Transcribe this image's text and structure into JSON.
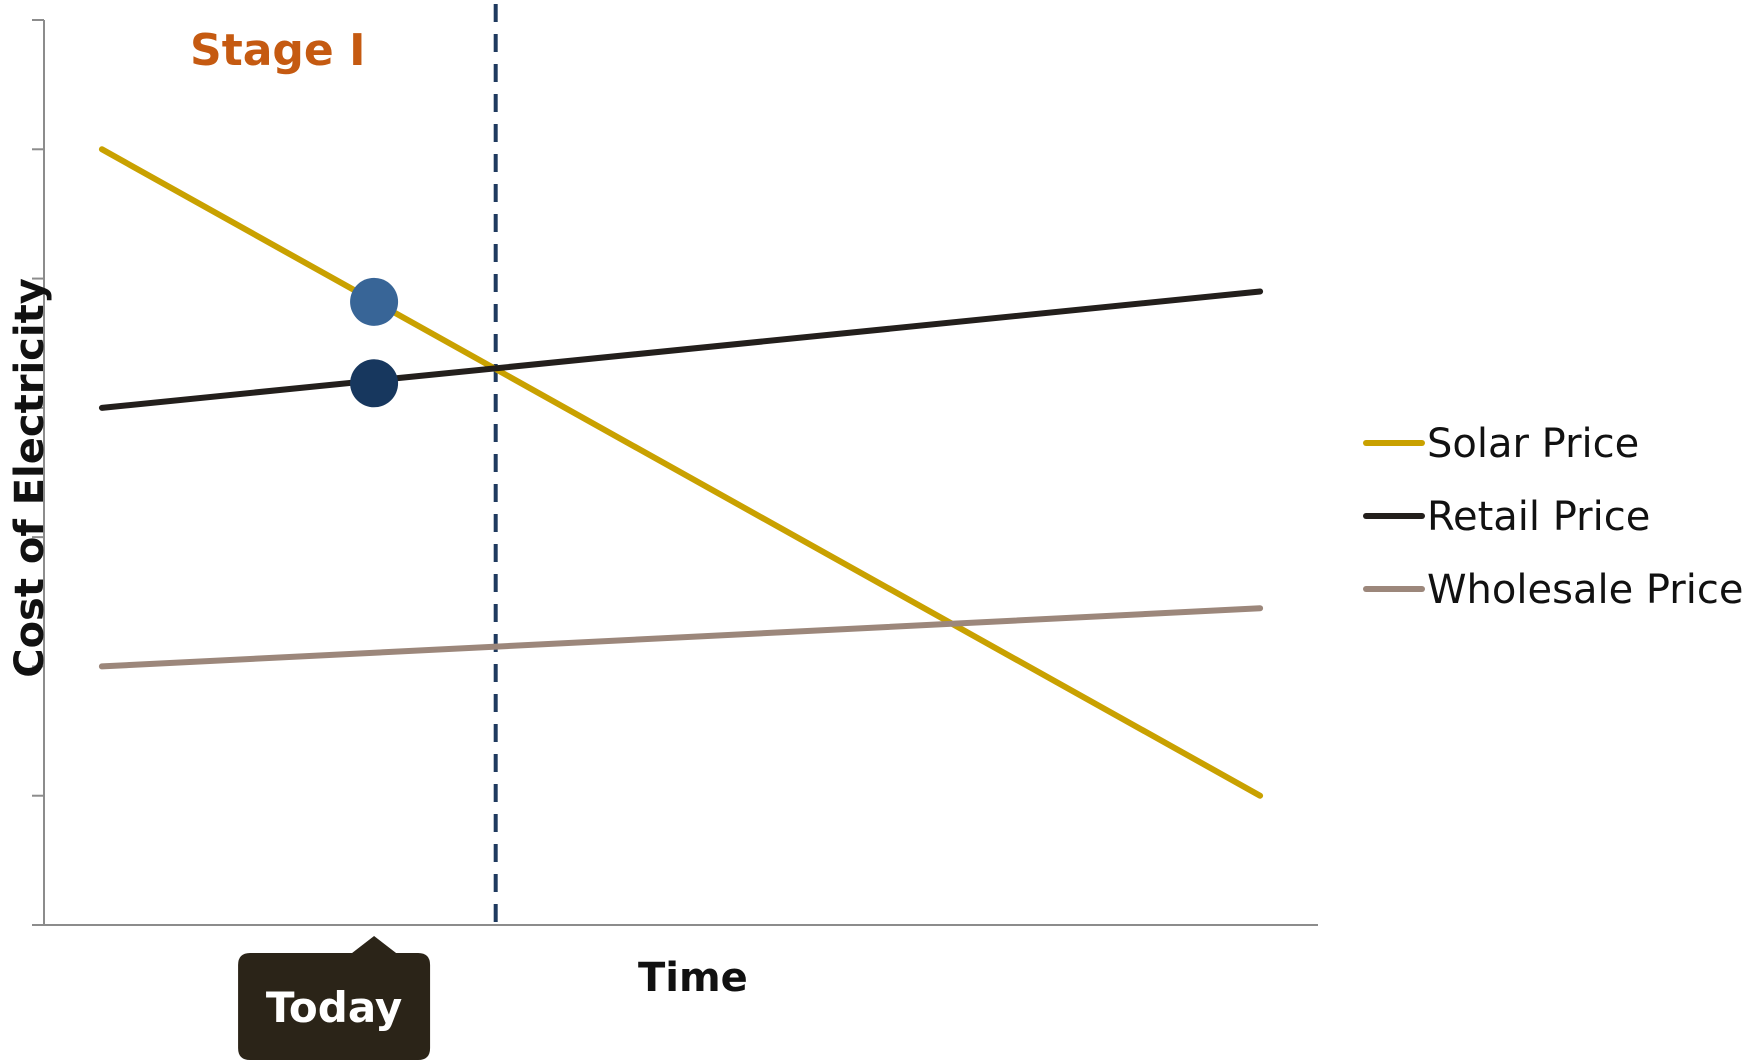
{
  "chart_data": {
    "type": "line",
    "title": "Stage I",
    "xlabel": "Time",
    "ylabel": "Cost of Electricity",
    "x": [
      0,
      10
    ],
    "xlim": [
      -0.5,
      10.5
    ],
    "ylim": [
      0,
      7
    ],
    "yticks": [
      0,
      1,
      2,
      3,
      4,
      5,
      6,
      7
    ],
    "grid": false,
    "legend_position": "right",
    "series": [
      {
        "name": "Solar Price",
        "color": "#c9a100",
        "values": [
          6.0,
          1.0
        ]
      },
      {
        "name": "Retail Price",
        "color": "#231f1c",
        "values": [
          4.0,
          4.9
        ]
      },
      {
        "name": "Wholesale Price",
        "color": "#9c877b",
        "values": [
          2.0,
          2.45
        ]
      }
    ],
    "markers": [
      {
        "series": "Solar Price",
        "x": 2.35,
        "y": 4.82,
        "color": "#386597"
      },
      {
        "series": "Retail Price",
        "x": 2.35,
        "y": 4.19,
        "color": "#17375e"
      }
    ],
    "vline": {
      "x": 3.4,
      "color": "#1f3a5f",
      "style": "dashed"
    },
    "annotation": {
      "text": "Today",
      "x": 2.35,
      "color": "#2b2418"
    }
  }
}
